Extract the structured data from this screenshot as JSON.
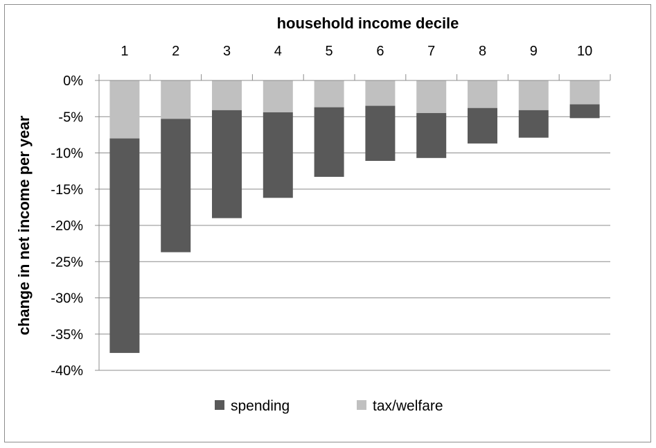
{
  "chart_data": {
    "type": "bar",
    "stacked": true,
    "title": "",
    "xlabel": "household income decile",
    "ylabel": "change in net income per year",
    "categories": [
      "1",
      "2",
      "3",
      "4",
      "5",
      "6",
      "7",
      "8",
      "9",
      "10"
    ],
    "y_tick_labels": [
      "0%",
      "-5%",
      "-10%",
      "-15%",
      "-20%",
      "-25%",
      "-30%",
      "-35%",
      "-40%"
    ],
    "ylim": [
      -40,
      0
    ],
    "ytick_step": 5,
    "grid": true,
    "x_axis_position": "top",
    "legend_position": "bottom",
    "series": [
      {
        "name": "tax/welfare",
        "color": "#c0c0c0",
        "values": [
          -8.0,
          -5.3,
          -4.1,
          -4.4,
          -3.7,
          -3.5,
          -4.5,
          -3.8,
          -4.1,
          -3.3
        ]
      },
      {
        "name": "spending",
        "color": "#595959",
        "values": [
          -29.6,
          -18.4,
          -14.9,
          -11.8,
          -9.6,
          -7.6,
          -6.2,
          -4.9,
          -3.8,
          -1.9
        ]
      }
    ],
    "legend": [
      {
        "name": "spending",
        "color": "#595959"
      },
      {
        "name": "tax/welfare",
        "color": "#c0c0c0"
      }
    ]
  }
}
